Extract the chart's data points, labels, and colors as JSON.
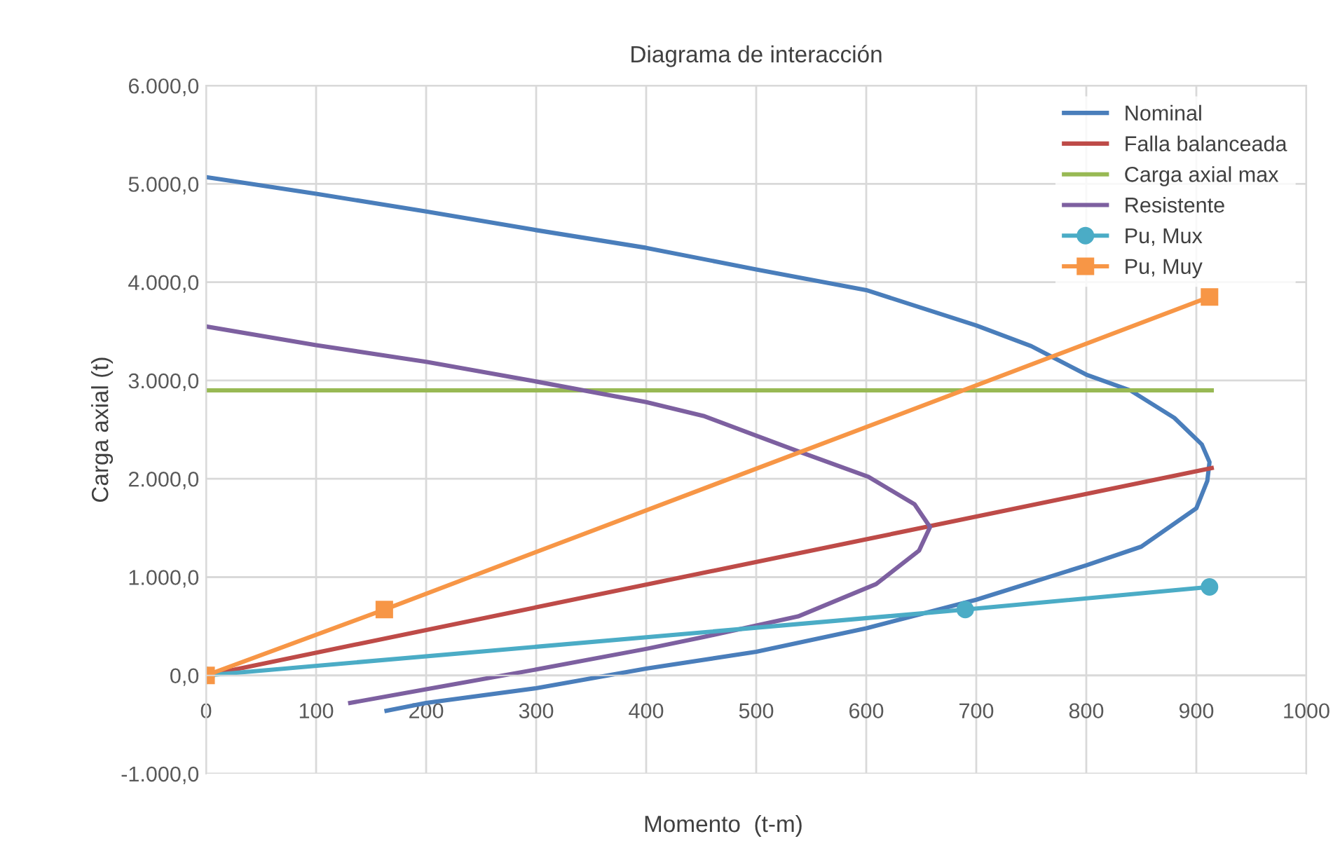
{
  "chart_data": {
    "type": "line",
    "title": "Diagrama de interacción",
    "xlabel": "Momento  (t-m)",
    "ylabel": "Carga axial (t)",
    "xlim": [
      0,
      1000
    ],
    "xticks": [
      0,
      100,
      200,
      300,
      400,
      500,
      600,
      700,
      800,
      900,
      1000
    ],
    "ylim": [
      -1000,
      6000
    ],
    "yticks": [
      {
        "value": -1000,
        "label": "-1.000,0"
      },
      {
        "value": 0,
        "label": "0,0"
      },
      {
        "value": 1000,
        "label": "1.000,0"
      },
      {
        "value": 2000,
        "label": "2.000,0"
      },
      {
        "value": 3000,
        "label": "3.000,0"
      },
      {
        "value": 4000,
        "label": "4.000,0"
      },
      {
        "value": 5000,
        "label": "5.000,0"
      },
      {
        "value": 6000,
        "label": "6.000,0"
      }
    ],
    "grid": true,
    "legend": "top right",
    "marker": "none",
    "line_style": "solid",
    "series": [
      {
        "name": "Nominal",
        "color": "#4a7ebb",
        "x": [
          0,
          100,
          200,
          300,
          400,
          500,
          600,
          700,
          750,
          800,
          840,
          880,
          905,
          912,
          910,
          900,
          850,
          800,
          700,
          600,
          500,
          400,
          300,
          200,
          164
        ],
        "values": [
          5070,
          4900,
          4720,
          4530,
          4350,
          4130,
          3920,
          3560,
          3350,
          3060,
          2900,
          2620,
          2350,
          2170,
          1980,
          1700,
          1310,
          1120,
          770,
          480,
          240,
          70,
          -130,
          -280,
          -360
        ]
      },
      {
        "name": "Falla balanceada",
        "color": "#be4b48",
        "x": [
          0,
          914
        ],
        "values": [
          0,
          2110
        ]
      },
      {
        "name": "Carga axial max",
        "color": "#98b954",
        "x": [
          0,
          914
        ],
        "values": [
          2900,
          2900
        ]
      },
      {
        "name": "Resistente",
        "color": "#7d60a0",
        "x": [
          0,
          100,
          200,
          300,
          400,
          452,
          500,
          538,
          602,
          644,
          658,
          648,
          609,
          538,
          452,
          400,
          300,
          200,
          131
        ],
        "values": [
          3550,
          3360,
          3190,
          2990,
          2780,
          2640,
          2440,
          2280,
          2020,
          1740,
          1510,
          1270,
          930,
          600,
          390,
          270,
          60,
          -140,
          -280
        ]
      },
      {
        "name": "Pu, Mux",
        "color": "#4bacc6",
        "marker": "circle",
        "x": [
          0,
          690,
          912
        ],
        "values": [
          0,
          670,
          900
        ]
      },
      {
        "name": "Pu, Muy",
        "color": "#f79646",
        "marker": "square",
        "x": [
          0,
          162,
          912
        ],
        "values": [
          0,
          670,
          3850
        ]
      }
    ]
  }
}
